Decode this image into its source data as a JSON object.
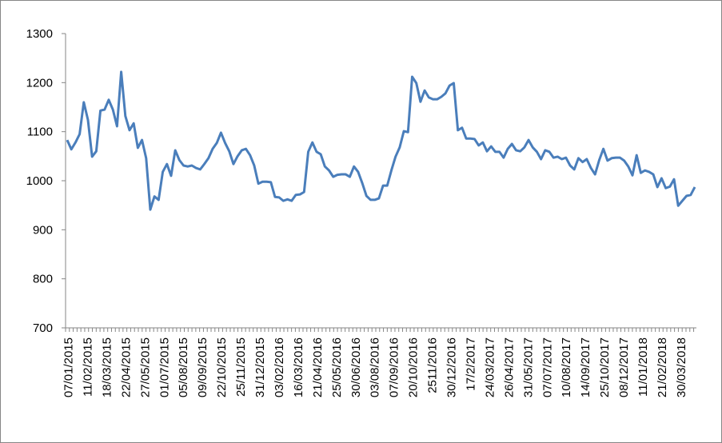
{
  "chart_data": {
    "type": "line",
    "title": "",
    "xlabel": "",
    "ylabel": "",
    "ylim": [
      700,
      1300
    ],
    "yticks": [
      700,
      800,
      900,
      1000,
      1100,
      1200,
      1300
    ],
    "grid": false,
    "legend": "none",
    "line_color": "#4a7ebb",
    "x_tick_labels": [
      "07/01/2015",
      "11/02/2015",
      "18/03/2015",
      "22/04/2015",
      "27/05/2015",
      "01/07/2015",
      "05/08/2015",
      "09/09/2015",
      "22/10/2015",
      "25/11/2015",
      "31/12/2015",
      "03/02/2016",
      "16/03/2016",
      "21/04/2016",
      "25/05/2016",
      "30/06/2016",
      "03/08/2016",
      "07/09/2016",
      "20/10/2016",
      "2511/2016",
      "30/12/2016",
      "17/2/2017",
      "24/03/2017",
      "26/04/2017",
      "31/05/2017",
      "07/07/2017",
      "10/08/2017",
      "14/09/2017",
      "25/10/2017",
      "08/12/2017",
      "11/01/2018",
      "21/02/2018",
      "30/03/2018"
    ],
    "series": [
      {
        "values": [
          1083,
          1064,
          1078,
          1095,
          1160,
          1124,
          1049,
          1060,
          1143,
          1145,
          1165,
          1145,
          1111,
          1222,
          1132,
          1103,
          1117,
          1067,
          1083,
          1046,
          941,
          968,
          961,
          1018,
          1034,
          1010,
          1062,
          1042,
          1031,
          1029,
          1031,
          1026,
          1023,
          1034,
          1046,
          1065,
          1077,
          1098,
          1077,
          1060,
          1034,
          1050,
          1062,
          1065,
          1052,
          1031,
          994,
          998,
          998,
          997,
          967,
          966,
          959,
          962,
          959,
          971,
          972,
          977,
          1059,
          1078,
          1059,
          1054,
          1029,
          1021,
          1008,
          1012,
          1013,
          1013,
          1008,
          1029,
          1018,
          995,
          969,
          961,
          961,
          964,
          990,
          990,
          1021,
          1049,
          1068,
          1101,
          1099,
          1212,
          1199,
          1161,
          1184,
          1170,
          1166,
          1166,
          1171,
          1178,
          1194,
          1199,
          1103,
          1108,
          1086,
          1086,
          1085,
          1072,
          1078,
          1060,
          1070,
          1059,
          1059,
          1047,
          1065,
          1075,
          1062,
          1060,
          1068,
          1083,
          1068,
          1059,
          1044,
          1062,
          1059,
          1047,
          1049,
          1044,
          1047,
          1031,
          1023,
          1046,
          1038,
          1044,
          1026,
          1013,
          1042,
          1065,
          1041,
          1046,
          1047,
          1047,
          1041,
          1029,
          1011,
          1052,
          1016,
          1021,
          1018,
          1013,
          987,
          1005,
          985,
          988,
          1003,
          949,
          959,
          969,
          971,
          987
        ]
      }
    ]
  }
}
